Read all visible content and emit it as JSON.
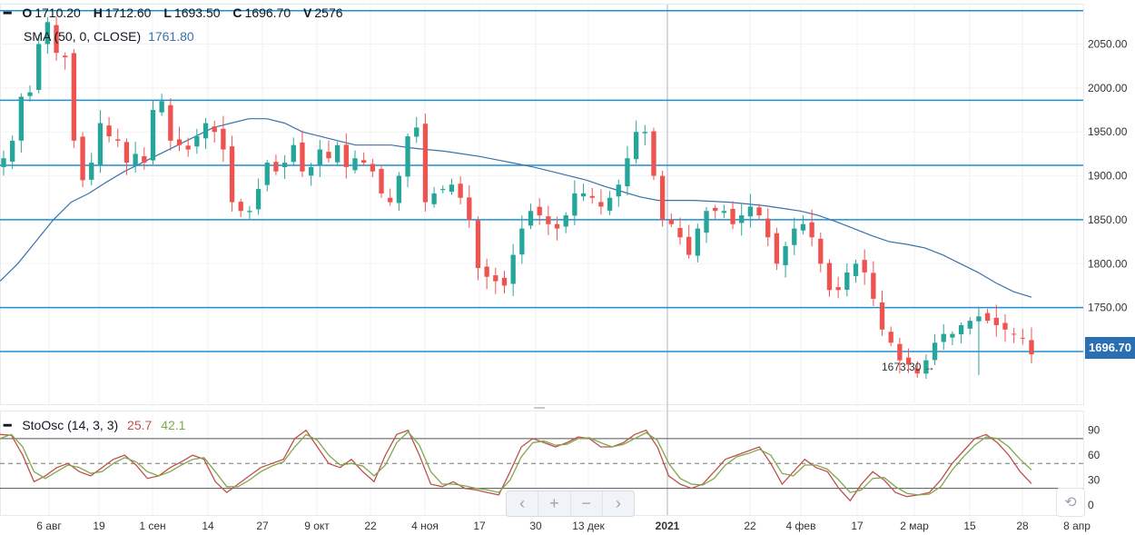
{
  "ohlc": {
    "open_key": "O",
    "open": "1710.20",
    "high_key": "H",
    "high": "1712.60",
    "low_key": "L",
    "low": "1693.50",
    "close_key": "C",
    "close": "1696.70",
    "volume_key": "V",
    "volume": "2576"
  },
  "sma": {
    "label": "SMA (50, 0, CLOSE)",
    "value": "1761.80",
    "color": "#3a72a8"
  },
  "stoch": {
    "label": "StoOsc (14, 3, 3)",
    "k_value": "25.7",
    "d_value": "42.1",
    "k_color": "#c0504d",
    "d_color": "#7fa84b"
  },
  "last_price": "1696.70",
  "low_annotation": "1673.30",
  "nav": {
    "icons": [
      "chevron-left-icon",
      "zoom-in-icon",
      "zoom-out-icon",
      "chevron-right-icon"
    ],
    "reset_icon": "reset-icon"
  },
  "colors": {
    "up": "#26a69a",
    "down": "#ef5350",
    "level": "#1d8fd2",
    "sma": "#3a72a8",
    "price_tag": "#2a6fb4"
  },
  "chart_data": [
    {
      "type": "candlestick",
      "ylim": [
        1640,
        2095
      ],
      "y_ticks": [
        1700,
        1750,
        1800,
        1850,
        1900,
        1950,
        2000,
        2050
      ],
      "y_tick_labels": [
        "1700.00",
        "1750.00",
        "1800.00",
        "1850.00",
        "1900.00",
        "1950.00",
        "2000.00",
        "2050.00"
      ],
      "x_tick_labels": [
        "6 авг",
        "19",
        "1 сен",
        "14",
        "27",
        "9 окт",
        "22",
        "4 ноя",
        "17",
        "30",
        "13 дек",
        "2021",
        "22",
        "4 фев",
        "17",
        "2 мар",
        "15",
        "28",
        "8 апр"
      ],
      "bold_tick": "2021",
      "horizontal_levels": [
        2088,
        1986,
        1912,
        1850,
        1750,
        1700
      ],
      "close_path": [
        1920,
        1940,
        1990,
        1995,
        2050,
        2075,
        2040,
        2035,
        1940,
        1895,
        1915,
        1960,
        1945,
        1940,
        1915,
        1925,
        1915,
        1975,
        1985,
        1940,
        1935,
        1930,
        1945,
        1960,
        1950,
        1930,
        1870,
        1860,
        1860,
        1885,
        1915,
        1905,
        1915,
        1935,
        1905,
        1910,
        1930,
        1920,
        1935,
        1910,
        1920,
        1915,
        1905,
        1880,
        1870,
        1900,
        1945,
        1955,
        1870,
        1880,
        1885,
        1890,
        1875,
        1850,
        1795,
        1785,
        1780,
        1775,
        1810,
        1840,
        1860,
        1855,
        1845,
        1840,
        1855,
        1880,
        1880,
        1875,
        1865,
        1875,
        1890,
        1920,
        1950,
        1950,
        1900,
        1850,
        1845,
        1830,
        1810,
        1840,
        1860,
        1860,
        1860,
        1845,
        1855,
        1865,
        1855,
        1830,
        1800,
        1820,
        1840,
        1845,
        1830,
        1800,
        1770,
        1770,
        1790,
        1800,
        1790,
        1760,
        1725,
        1710,
        1690,
        1685,
        1675,
        1690,
        1710,
        1720,
        1720,
        1730,
        1735,
        1740,
        1735,
        1730,
        1725,
        1720,
        1715,
        1696.7
      ],
      "sma_path": [
        1780,
        1800,
        1825,
        1850,
        1870,
        1880,
        1893,
        1905,
        1915,
        1925,
        1935,
        1945,
        1955,
        1960,
        1965,
        1965,
        1960,
        1950,
        1945,
        1940,
        1935,
        1935,
        1935,
        1932,
        1930,
        1928,
        1925,
        1922,
        1918,
        1914,
        1910,
        1905,
        1900,
        1895,
        1888,
        1882,
        1876,
        1872,
        1872,
        1872,
        1871,
        1870,
        1868,
        1866,
        1863,
        1860,
        1855,
        1848,
        1840,
        1832,
        1825,
        1822,
        1818,
        1810,
        1800,
        1790,
        1778,
        1768,
        1761.8
      ],
      "low_marker": 1673.3,
      "last_close": 1696.7
    },
    {
      "type": "line",
      "ylim": [
        -10,
        105
      ],
      "y_ticks": [
        0,
        30,
        60,
        90
      ],
      "y_tick_labels": [
        "0",
        "30",
        "60",
        "90"
      ],
      "bands": [
        80,
        50,
        20
      ],
      "series": [
        {
          "values": [
            85,
            84,
            60,
            28,
            35,
            45,
            50,
            40,
            35,
            45,
            55,
            60,
            48,
            32,
            35,
            45,
            52,
            60,
            55,
            28,
            15,
            25,
            35,
            45,
            50,
            55,
            80,
            90,
            70,
            50,
            45,
            55,
            40,
            28,
            60,
            85,
            90,
            60,
            25,
            22,
            28,
            20,
            18,
            15,
            12,
            40,
            70,
            80,
            75,
            70,
            75,
            82,
            80,
            70,
            70,
            75,
            85,
            90,
            70,
            35,
            25,
            20,
            25,
            40,
            55,
            60,
            65,
            70,
            50,
            25,
            40,
            55,
            45,
            40,
            20,
            5,
            25,
            40,
            30,
            15,
            10,
            12,
            15,
            30,
            50,
            65,
            80,
            85,
            75,
            60,
            40,
            25.7
          ]
        },
        {
          "values": [
            80,
            85,
            70,
            40,
            32,
            40,
            48,
            45,
            38,
            40,
            50,
            57,
            52,
            40,
            35,
            40,
            48,
            55,
            57,
            40,
            22,
            22,
            30,
            40,
            47,
            52,
            70,
            85,
            78,
            60,
            48,
            50,
            47,
            35,
            48,
            75,
            88,
            72,
            40,
            25,
            25,
            23,
            20,
            18,
            15,
            30,
            58,
            75,
            77,
            72,
            73,
            80,
            81,
            75,
            70,
            73,
            80,
            87,
            78,
            50,
            32,
            25,
            24,
            32,
            48,
            58,
            62,
            67,
            60,
            38,
            35,
            48,
            48,
            43,
            30,
            15,
            18,
            32,
            33,
            22,
            14,
            12,
            13,
            22,
            42,
            58,
            72,
            82,
            80,
            70,
            55,
            42.1
          ]
        }
      ]
    }
  ]
}
